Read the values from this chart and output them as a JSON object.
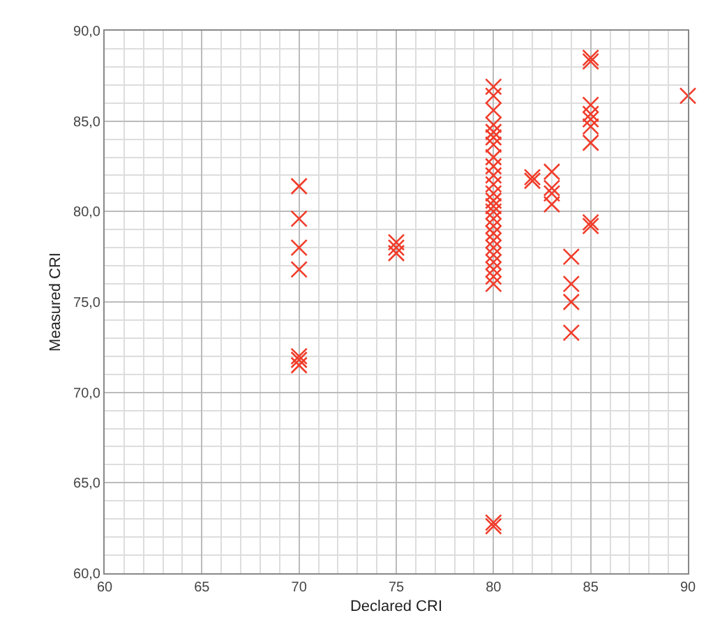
{
  "chart_data": {
    "type": "scatter",
    "xlabel": "Declared CRI",
    "ylabel": "Measured CRI",
    "marker": "cross",
    "grid": true,
    "legend": false,
    "xlim": [
      60,
      90
    ],
    "xticks": [
      60,
      65,
      70,
      75,
      80,
      85,
      90
    ],
    "ylim": [
      60,
      90
    ],
    "yticks": [
      {
        "value": 60,
        "label": "60,0"
      },
      {
        "value": 65,
        "label": "65,0"
      },
      {
        "value": 70,
        "label": "70,0"
      },
      {
        "value": 75,
        "label": "75,0"
      },
      {
        "value": 80,
        "label": "80,0"
      },
      {
        "value": 85,
        "label": "85,0"
      },
      {
        "value": 90,
        "label": "90,0"
      }
    ],
    "series": [
      {
        "color": "#f03c2a",
        "x": [
          70,
          70,
          70,
          70,
          70,
          70,
          70,
          75,
          75,
          75,
          80,
          80,
          80,
          80,
          80,
          80,
          80,
          80,
          80,
          80,
          80,
          80,
          80,
          80,
          80,
          80,
          80,
          80,
          80,
          80,
          80,
          80,
          80,
          80,
          80,
          80,
          80,
          82,
          82,
          83,
          83,
          83,
          83,
          84,
          84,
          84,
          84,
          85,
          85,
          85,
          85,
          85,
          85,
          85,
          85,
          85,
          90
        ],
        "values": [
          81.4,
          79.6,
          78.0,
          76.8,
          72.0,
          71.8,
          71.5,
          78.3,
          78.0,
          77.7,
          86.9,
          86.4,
          85.6,
          84.8,
          84.4,
          84.1,
          83.7,
          83.0,
          82.5,
          82.0,
          81.5,
          81.0,
          80.6,
          80.3,
          80.0,
          79.6,
          79.2,
          78.8,
          78.4,
          78.0,
          77.6,
          77.2,
          76.8,
          76.4,
          76.0,
          62.8,
          62.6,
          81.9,
          81.7,
          82.2,
          81.3,
          81.0,
          80.4,
          77.5,
          76.0,
          75.0,
          73.3,
          88.5,
          88.3,
          85.9,
          85.4,
          85.1,
          84.7,
          83.8,
          79.4,
          79.2,
          86.4
        ]
      }
    ]
  }
}
